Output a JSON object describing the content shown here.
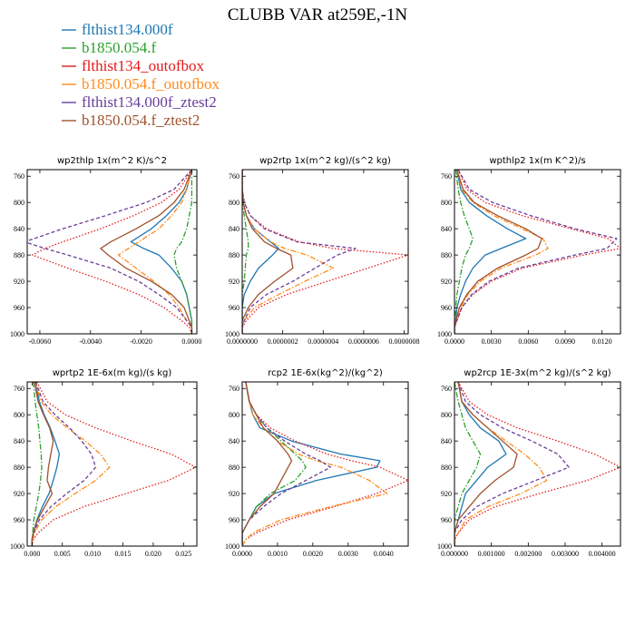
{
  "figure": {
    "title": "CLUBB VAR at259E,-1N",
    "legend": [
      {
        "name": "flthist134.000f",
        "color": "#1f77b4",
        "dash": "solid"
      },
      {
        "name": "b1850.054.f",
        "color": "#2ca02c",
        "dash": "dashdot"
      },
      {
        "name": "flthist134_outofbox",
        "color": "#e41a1c",
        "dash": "dot"
      },
      {
        "name": "b1850.054.f_outofbox",
        "color": "#ff8c1a",
        "dash": "dashdot"
      },
      {
        "name": "flthist134.000f_ztest2",
        "color": "#6a3d9a",
        "dash": "dash"
      },
      {
        "name": "b1850.054.f_ztest2",
        "color": "#a0522d",
        "dash": "solid"
      }
    ]
  },
  "chart_data": [
    {
      "type": "line",
      "title": "wp2thlp  1x(m^2 K)/s^2",
      "xlim": [
        -0.0065,
        0.0002
      ],
      "ylim": [
        1000,
        750
      ],
      "xticks": [
        -0.006,
        -0.004,
        -0.002,
        0.0
      ],
      "xticklabels": [
        "-0.0060",
        "-0.0040",
        "-0.0020",
        "0.0000"
      ],
      "yticks": [
        760,
        800,
        840,
        880,
        920,
        960,
        1000
      ],
      "y": [
        750,
        780,
        800,
        820,
        840,
        860,
        870,
        880,
        900,
        920,
        940,
        960,
        980,
        990,
        1000
      ],
      "series": [
        {
          "values": [
            0.0,
            -0.0002,
            -0.0005,
            -0.001,
            -0.0016,
            -0.0024,
            -0.0019,
            -0.0013,
            -0.0008,
            -0.0004,
            -0.0002,
            -0.0001,
            0.0,
            0.0,
            0.0
          ]
        },
        {
          "values": [
            0.0,
            0.0,
            0.0,
            -0.0001,
            -0.0002,
            -0.0004,
            -0.0006,
            -0.0007,
            -0.0006,
            -0.0004,
            -0.0002,
            -0.0001,
            0.0,
            0.0,
            0.0
          ]
        },
        {
          "values": [
            0.0,
            -0.0005,
            -0.0012,
            -0.0023,
            -0.0036,
            -0.0051,
            -0.0058,
            -0.0063,
            -0.0049,
            -0.0034,
            -0.0021,
            -0.0011,
            -0.0004,
            -0.0001,
            0.0
          ]
        },
        {
          "values": [
            0.0,
            -0.0002,
            -0.0004,
            -0.0008,
            -0.0013,
            -0.0021,
            -0.0025,
            -0.0029,
            -0.0022,
            -0.0015,
            -0.0009,
            -0.0005,
            -0.0002,
            0.0,
            0.0
          ]
        },
        {
          "values": [
            0.0,
            -0.0007,
            -0.0018,
            -0.0034,
            -0.0051,
            -0.0066,
            -0.0058,
            -0.0049,
            -0.0032,
            -0.0021,
            -0.0013,
            -0.0006,
            -0.0002,
            0.0,
            0.0
          ]
        },
        {
          "values": [
            0.0,
            -0.0003,
            -0.0007,
            -0.0013,
            -0.0022,
            -0.0032,
            -0.0036,
            -0.0033,
            -0.0026,
            -0.0016,
            -0.0008,
            -0.0003,
            -0.0001,
            0.0,
            0.0
          ]
        }
      ]
    },
    {
      "type": "line",
      "title": "wp2rtp  1x(m^2 kg)/(s^2 kg)",
      "xlim": [
        0.0,
        8.2e-07
      ],
      "ylim": [
        1000,
        750
      ],
      "xticks": [
        0.0,
        2e-07,
        4e-07,
        6e-07,
        8e-07
      ],
      "xticklabels": [
        "0.0000000",
        "0.0000002",
        "0.0000004",
        "0.0000006",
        "0.0000008"
      ],
      "yticks": [
        760,
        800,
        840,
        880,
        920,
        960,
        1000
      ],
      "y": [
        750,
        780,
        800,
        820,
        840,
        860,
        870,
        880,
        900,
        920,
        940,
        960,
        980,
        990,
        1000
      ],
      "series": [
        {
          "values": [
            0.0,
            0.0,
            5e-09,
            2e-08,
            6e-08,
            1.4e-07,
            1.8e-07,
            1.5e-07,
            8e-08,
            4e-08,
            1e-08,
            0.0,
            0.0,
            0.0,
            0.0
          ]
        },
        {
          "values": [
            0.0,
            0.0,
            0.0,
            1e-08,
            2e-08,
            3e-08,
            3e-08,
            2e-08,
            1.5e-08,
            1e-08,
            0.0,
            0.0,
            0.0,
            0.0,
            0.0
          ]
        },
        {
          "values": [
            0.0,
            0.0,
            1e-08,
            4e-08,
            1.2e-07,
            2.8e-07,
            4.5e-07,
            8.2e-07,
            6.2e-07,
            4.2e-07,
            2.2e-07,
            8e-08,
            2e-08,
            0.0,
            0.0
          ]
        },
        {
          "values": [
            0.0,
            0.0,
            5e-09,
            2e-08,
            6e-08,
            1.4e-07,
            2.1e-07,
            3.2e-07,
            4.5e-07,
            3.1e-07,
            1.8e-07,
            6e-08,
            1e-08,
            0.0,
            0.0
          ]
        },
        {
          "values": [
            0.0,
            0.0,
            1e-08,
            4e-08,
            1.1e-07,
            2.7e-07,
            5.6e-07,
            4.7e-07,
            3.6e-07,
            2.5e-07,
            1.2e-07,
            4e-08,
            1e-08,
            0.0,
            0.0
          ]
        },
        {
          "values": [
            0.0,
            0.0,
            5e-09,
            2e-08,
            5e-08,
            1.1e-07,
            1.7e-07,
            2.4e-07,
            2.5e-07,
            1.6e-07,
            8e-08,
            3e-08,
            0.0,
            0.0,
            0.0
          ]
        }
      ]
    },
    {
      "type": "line",
      "title": "wpthlp2  1x(m K^2)/s",
      "xlim": [
        0.0,
        0.0135
      ],
      "ylim": [
        1000,
        750
      ],
      "xticks": [
        0.0,
        0.003,
        0.006,
        0.009,
        0.012
      ],
      "xticklabels": [
        "0.0000",
        "0.0030",
        "0.0060",
        "0.0090",
        "0.0120"
      ],
      "yticks": [
        760,
        800,
        840,
        880,
        920,
        960,
        1000
      ],
      "y": [
        750,
        780,
        800,
        820,
        840,
        855,
        870,
        880,
        900,
        920,
        940,
        960,
        980,
        990,
        1000
      ],
      "series": [
        {
          "values": [
            0.0002,
            0.0005,
            0.0012,
            0.0026,
            0.0043,
            0.0058,
            0.0038,
            0.0025,
            0.0015,
            0.0009,
            0.0005,
            0.0002,
            0.0001,
            0.0,
            0.0
          ]
        },
        {
          "values": [
            0.0001,
            0.0003,
            0.0005,
            0.0008,
            0.0012,
            0.0015,
            0.0012,
            0.0009,
            0.0006,
            0.0004,
            0.0002,
            0.0001,
            0.0,
            0.0,
            0.0
          ]
        },
        {
          "values": [
            0.0003,
            0.001,
            0.0025,
            0.0055,
            0.0095,
            0.0125,
            0.0135,
            0.0105,
            0.0055,
            0.003,
            0.0015,
            0.0006,
            0.0002,
            0.0,
            0.0
          ]
        },
        {
          "values": [
            0.0002,
            0.0006,
            0.0015,
            0.0032,
            0.0055,
            0.0072,
            0.0076,
            0.0066,
            0.0038,
            0.0021,
            0.0011,
            0.0005,
            0.0001,
            0.0,
            0.0
          ]
        },
        {
          "values": [
            0.0003,
            0.0012,
            0.0031,
            0.0062,
            0.0098,
            0.0132,
            0.0124,
            0.0098,
            0.0052,
            0.0028,
            0.0014,
            0.0006,
            0.0002,
            0.0,
            0.0
          ]
        },
        {
          "values": [
            0.0002,
            0.0007,
            0.0016,
            0.0035,
            0.0058,
            0.0071,
            0.0068,
            0.0058,
            0.0035,
            0.0019,
            0.001,
            0.0004,
            0.0001,
            0.0,
            0.0
          ]
        }
      ]
    },
    {
      "type": "line",
      "title": "wprtp2  1E-6x(m kg)/(s kg)",
      "xlim": [
        -0.0008,
        0.0272
      ],
      "ylim": [
        1000,
        750
      ],
      "xticks": [
        0.0,
        0.005,
        0.01,
        0.015,
        0.02,
        0.025
      ],
      "xticklabels": [
        "0.000",
        "0.005",
        "0.010",
        "0.015",
        "0.020",
        "0.025"
      ],
      "yticks": [
        760,
        800,
        840,
        880,
        920,
        960,
        1000
      ],
      "y": [
        750,
        780,
        800,
        820,
        840,
        860,
        880,
        900,
        920,
        940,
        960,
        980,
        990,
        1000
      ],
      "series": [
        {
          "values": [
            0.0005,
            0.0012,
            0.002,
            0.003,
            0.0038,
            0.0045,
            0.0041,
            0.0035,
            0.0028,
            0.0017,
            0.0008,
            0.0002,
            0.0,
            0.0
          ]
        },
        {
          "values": [
            0.0002,
            0.0005,
            0.0008,
            0.0011,
            0.0013,
            0.0015,
            0.0016,
            0.0014,
            0.0011,
            0.0007,
            0.0003,
            0.0001,
            0.0,
            0.0
          ]
        },
        {
          "values": [
            0.0008,
            0.0025,
            0.0055,
            0.0105,
            0.0165,
            0.023,
            0.027,
            0.0225,
            0.0155,
            0.0085,
            0.0035,
            0.001,
            0.0002,
            0.0
          ]
        },
        {
          "values": [
            0.0005,
            0.0015,
            0.0032,
            0.0058,
            0.0088,
            0.0113,
            0.0128,
            0.0105,
            0.0071,
            0.0039,
            0.0016,
            0.0004,
            0.0001,
            0.0
          ]
        },
        {
          "values": [
            0.0006,
            0.0018,
            0.0038,
            0.0062,
            0.0082,
            0.0098,
            0.0105,
            0.0086,
            0.0057,
            0.0031,
            0.0012,
            0.0003,
            0.0,
            0.0
          ]
        },
        {
          "values": [
            0.0004,
            0.001,
            0.0019,
            0.0029,
            0.0035,
            0.0031,
            0.0027,
            0.0025,
            0.0033,
            0.0021,
            0.0009,
            0.0002,
            0.0,
            0.0
          ]
        }
      ]
    },
    {
      "type": "line",
      "title": "rcp2  1E-6x(kg^2)/(kg^2)",
      "xlim": [
        0.0,
        0.0047
      ],
      "ylim": [
        1000,
        750
      ],
      "xticks": [
        0.0,
        0.001,
        0.002,
        0.003,
        0.004
      ],
      "xticklabels": [
        "0.0000",
        "0.0010",
        "0.0020",
        "0.0030",
        "0.0040"
      ],
      "yticks": [
        760,
        800,
        840,
        880,
        920,
        960,
        1000
      ],
      "y": [
        750,
        780,
        800,
        820,
        840,
        860,
        870,
        880,
        900,
        920,
        940,
        960,
        980,
        990,
        1000
      ],
      "series": [
        {
          "values": [
            0.0001,
            0.0002,
            0.0003,
            0.0005,
            0.0014,
            0.0028,
            0.0039,
            0.0038,
            0.0021,
            0.0009,
            0.0004,
            0.0002,
            0.0,
            0.0,
            0.0
          ]
        },
        {
          "values": [
            0.0001,
            0.0002,
            0.0004,
            0.0007,
            0.0011,
            0.0015,
            0.0017,
            0.0018,
            0.0015,
            0.0008,
            0.0004,
            0.0002,
            0.0,
            0.0,
            0.0
          ]
        },
        {
          "values": [
            0.0001,
            0.0002,
            0.0004,
            0.0008,
            0.0015,
            0.0024,
            0.0031,
            0.0039,
            0.0047,
            0.0038,
            0.0026,
            0.0013,
            0.0004,
            0.0001,
            0.0
          ]
        },
        {
          "values": [
            0.0001,
            0.0002,
            0.0003,
            0.0006,
            0.001,
            0.0016,
            0.0021,
            0.0028,
            0.0036,
            0.0041,
            0.0025,
            0.0011,
            0.0003,
            0.0001,
            0.0
          ]
        },
        {
          "values": [
            0.0001,
            0.0002,
            0.0004,
            0.0007,
            0.0012,
            0.0018,
            0.0022,
            0.0025,
            0.0018,
            0.0011,
            0.0006,
            0.0002,
            0.0,
            0.0,
            0.0
          ]
        },
        {
          "values": [
            0.0001,
            0.0002,
            0.0004,
            0.0006,
            0.001,
            0.0013,
            0.0014,
            0.0013,
            0.0011,
            0.0009,
            0.0005,
            0.0002,
            0.0,
            0.0,
            0.0
          ]
        }
      ]
    },
    {
      "type": "line",
      "title": "wp2rcp  1E-3x(m^2 kg)/(s^2 kg)",
      "xlim": [
        0.0,
        0.0045
      ],
      "ylim": [
        1000,
        750
      ],
      "xticks": [
        0.0,
        0.001,
        0.002,
        0.003,
        0.004
      ],
      "xticklabels": [
        "0.000000",
        "0.001000",
        "0.002000",
        "0.003000",
        "0.004000"
      ],
      "yticks": [
        760,
        800,
        840,
        880,
        920,
        960,
        1000
      ],
      "y": [
        750,
        780,
        800,
        820,
        840,
        860,
        880,
        900,
        920,
        940,
        960,
        980,
        990,
        1000
      ],
      "series": [
        {
          "values": [
            0.0001,
            0.0002,
            0.0004,
            0.0007,
            0.0012,
            0.0014,
            0.0009,
            0.0006,
            0.0003,
            0.0002,
            0.0001,
            0.0,
            0.0,
            0.0
          ]
        },
        {
          "values": [
            0.0,
            0.0001,
            0.0002,
            0.0003,
            0.0005,
            0.0007,
            0.0006,
            0.0004,
            0.0002,
            0.0001,
            0.0,
            0.0,
            0.0,
            0.0
          ]
        },
        {
          "values": [
            0.0001,
            0.0004,
            0.0009,
            0.0017,
            0.0028,
            0.0038,
            0.0045,
            0.0036,
            0.0023,
            0.0011,
            0.0004,
            0.0001,
            0.0,
            0.0
          ]
        },
        {
          "values": [
            0.0001,
            0.0002,
            0.0005,
            0.0009,
            0.0014,
            0.0019,
            0.0023,
            0.0025,
            0.0018,
            0.0009,
            0.0003,
            0.0001,
            0.0,
            0.0
          ]
        },
        {
          "values": [
            0.0001,
            0.0003,
            0.0007,
            0.0013,
            0.0021,
            0.0028,
            0.0031,
            0.0022,
            0.0013,
            0.0006,
            0.0002,
            0.0,
            0.0,
            0.0
          ]
        },
        {
          "values": [
            0.0001,
            0.0002,
            0.0005,
            0.0009,
            0.0013,
            0.0017,
            0.0016,
            0.0011,
            0.0007,
            0.0004,
            0.0001,
            0.0,
            0.0,
            0.0
          ]
        }
      ]
    }
  ]
}
